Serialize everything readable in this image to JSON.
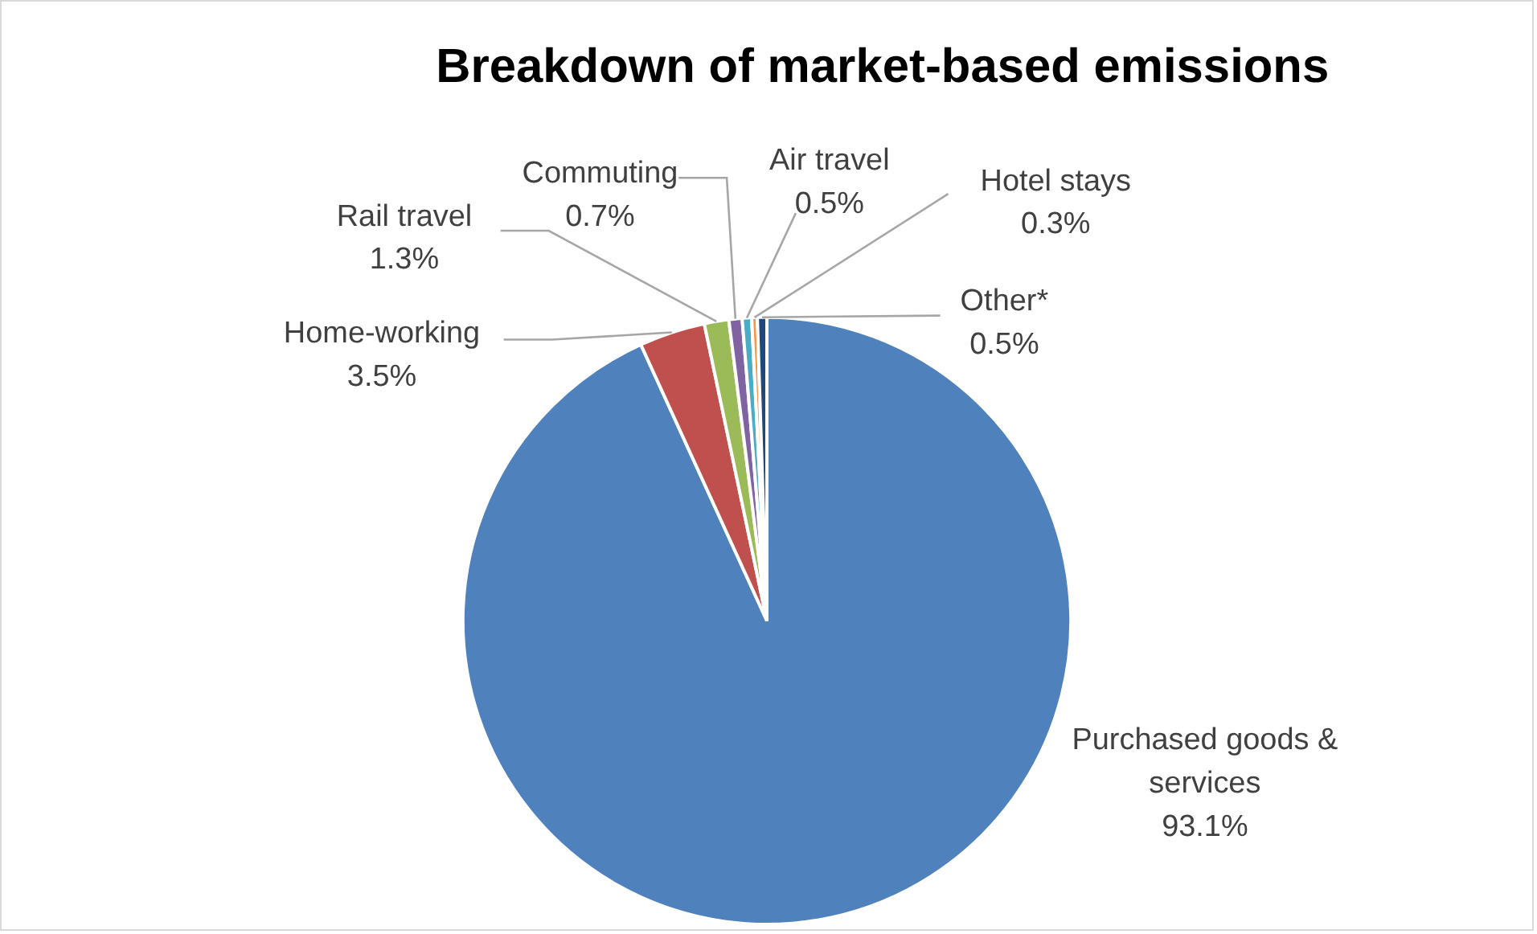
{
  "chart_data": {
    "type": "pie",
    "title": "Breakdown of market-based emissions",
    "categories": [
      "Purchased goods & services",
      "Home-working",
      "Rail travel",
      "Commuting",
      "Air travel",
      "Hotel stays",
      "Other*"
    ],
    "values": [
      93.1,
      3.5,
      1.3,
      0.7,
      0.5,
      0.3,
      0.5
    ],
    "value_labels": [
      "93.1%",
      "3.5%",
      "1.3%",
      "0.7%",
      "0.5%",
      "0.3%",
      "0.5%"
    ],
    "colors": [
      "#4f81bd",
      "#c0504d",
      "#9bbb59",
      "#8064a2",
      "#4bacc6",
      "#f79646",
      "#1f497d"
    ]
  }
}
